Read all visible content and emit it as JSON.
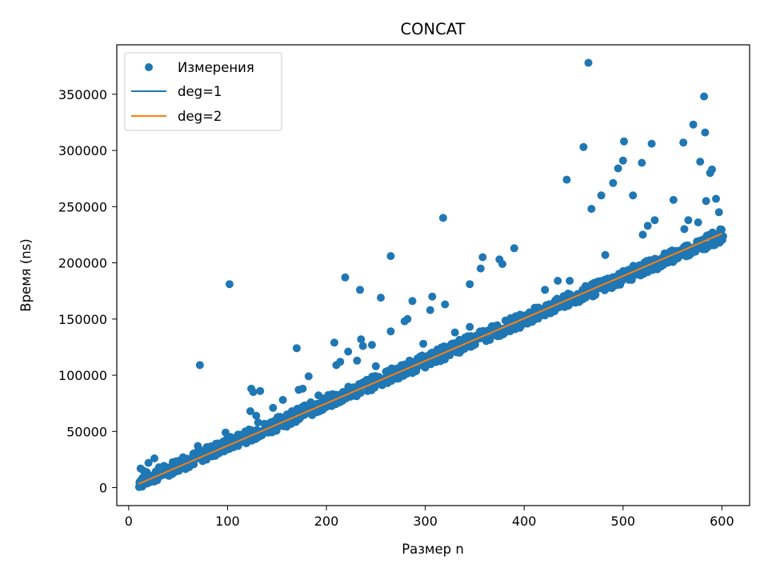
{
  "chart_data": {
    "type": "scatter",
    "title": "CONCAT",
    "xlabel": "Размер n",
    "ylabel": "Время (ns)",
    "xlim": [
      -12,
      628
    ],
    "ylim": [
      -16000,
      394000
    ],
    "xticks": [
      0,
      100,
      200,
      300,
      400,
      500,
      600
    ],
    "yticks": [
      0,
      50000,
      100000,
      150000,
      200000,
      250000,
      300000,
      350000
    ],
    "grid": false,
    "legend_position": "top-left",
    "colors": {
      "measurements": "#1f77b4",
      "deg1": "#1f77b4",
      "deg2": "#ff7f0e"
    },
    "series": [
      {
        "name": "Измерения",
        "kind": "scatter",
        "trend": {
          "x_range": [
            10,
            600
          ],
          "slope": 372.2,
          "intercept": 0,
          "noise_low": -4500,
          "noise_high": 7500,
          "every": 2
        },
        "points": [
          [
            72,
            109000
          ],
          [
            102,
            181000
          ],
          [
            124,
            88000
          ],
          [
            126,
            85000
          ],
          [
            133,
            86000
          ],
          [
            170,
            124000
          ],
          [
            172,
            87000
          ],
          [
            176,
            88000
          ],
          [
            182,
            99000
          ],
          [
            208,
            129000
          ],
          [
            210,
            109000
          ],
          [
            214,
            112000
          ],
          [
            219,
            187000
          ],
          [
            222,
            121000
          ],
          [
            234,
            176000
          ],
          [
            235,
            132000
          ],
          [
            237,
            126000
          ],
          [
            246,
            127000
          ],
          [
            255,
            169000
          ],
          [
            265,
            206000
          ],
          [
            265,
            139000
          ],
          [
            279,
            148000
          ],
          [
            287,
            166000
          ],
          [
            305,
            158000
          ],
          [
            307,
            170000
          ],
          [
            318,
            240000
          ],
          [
            320,
            163000
          ],
          [
            345,
            181000
          ],
          [
            358,
            205000
          ],
          [
            356,
            195000
          ],
          [
            375,
            203000
          ],
          [
            378,
            199000
          ],
          [
            390,
            213000
          ],
          [
            443,
            274000
          ],
          [
            460,
            303000
          ],
          [
            465,
            378000
          ],
          [
            468,
            248000
          ],
          [
            478,
            260000
          ],
          [
            490,
            271000
          ],
          [
            495,
            284000
          ],
          [
            500,
            291000
          ],
          [
            501,
            308000
          ],
          [
            510,
            260000
          ],
          [
            519,
            289000
          ],
          [
            529,
            306000
          ],
          [
            532,
            238000
          ],
          [
            551,
            256000
          ],
          [
            561,
            307000
          ],
          [
            566,
            238000
          ],
          [
            571,
            323000
          ],
          [
            578,
            290000
          ],
          [
            582,
            348000
          ],
          [
            583,
            316000
          ],
          [
            588,
            280000
          ],
          [
            590,
            283000
          ],
          [
            594,
            257000
          ],
          [
            597,
            245000
          ],
          [
            584,
            255000
          ],
          [
            123,
            68000
          ],
          [
            129,
            64000
          ],
          [
            146,
            71000
          ],
          [
            156,
            78000
          ],
          [
            165,
            68000
          ],
          [
            192,
            82000
          ],
          [
            231,
            113000
          ],
          [
            250,
            108000
          ],
          [
            282,
            150000
          ],
          [
            298,
            128000
          ],
          [
            330,
            138000
          ],
          [
            345,
            143000
          ],
          [
            12,
            17000
          ],
          [
            15,
            15000
          ],
          [
            20,
            22000
          ],
          [
            26,
            26000
          ],
          [
            33,
            18000
          ],
          [
            55,
            27000
          ],
          [
            70,
            37000
          ],
          [
            98,
            49000
          ],
          [
            118,
            50000
          ],
          [
            131,
            58000
          ],
          [
            421,
            176000
          ],
          [
            434,
            184000
          ],
          [
            446,
            184000
          ],
          [
            482,
            207000
          ],
          [
            520,
            225000
          ],
          [
            525,
            233000
          ],
          [
            562,
            230000
          ],
          [
            576,
            236000
          ]
        ]
      },
      {
        "name": "deg=1",
        "kind": "line",
        "x": [
          10,
          600
        ],
        "y": [
          3300,
          226000
        ]
      },
      {
        "name": "deg=2",
        "kind": "line",
        "x": [
          10,
          600
        ],
        "y": [
          3300,
          226000
        ]
      }
    ]
  }
}
